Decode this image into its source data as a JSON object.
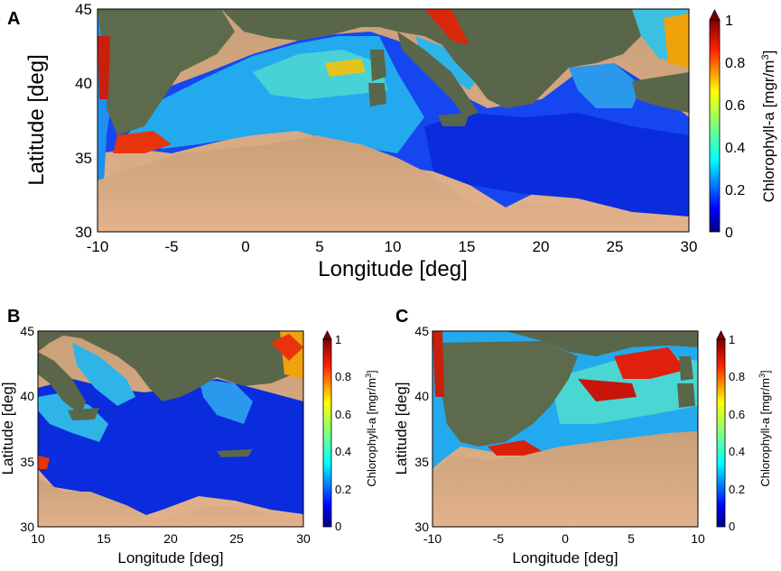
{
  "chart_data": [
    {
      "panel": "A",
      "type": "heatmap",
      "xlabel": "Longitude [deg]",
      "ylabel": "Latitude [deg]",
      "xlim": [
        -10,
        30
      ],
      "ylim": [
        30,
        45
      ],
      "x_ticks": [
        "-10",
        "-5",
        "0",
        "5",
        "10",
        "15",
        "20",
        "25",
        "30"
      ],
      "y_ticks": [
        "30",
        "35",
        "40",
        "45"
      ],
      "colorbar": {
        "label_main": "Chlorophyll-a [mgr/m",
        "label_sup": "3",
        "label_end": "]",
        "range": [
          0,
          1
        ],
        "ticks": [
          "0",
          "0.2",
          "0.4",
          "0.6",
          "0.8",
          "1"
        ]
      },
      "colormap": [
        "#00007f",
        "#0000ff",
        "#007fff",
        "#00ffff",
        "#7fff7f",
        "#ffff00",
        "#ff7f00",
        "#ff0000",
        "#7f0000"
      ]
    },
    {
      "panel": "B",
      "type": "heatmap",
      "xlabel": "Longitude [deg]",
      "ylabel": "Latitude [deg]",
      "xlim": [
        10,
        30
      ],
      "ylim": [
        30,
        45
      ],
      "x_ticks": [
        "10",
        "15",
        "20",
        "25",
        "30"
      ],
      "y_ticks": [
        "30",
        "35",
        "40",
        "45"
      ],
      "colorbar": {
        "label_main": "Chlorophyll-a [mgr/m",
        "label_sup": "3",
        "label_end": "]",
        "range": [
          0,
          1
        ],
        "ticks": [
          "0",
          "0.2",
          "0.4",
          "0.6",
          "0.8",
          "1"
        ]
      }
    },
    {
      "panel": "C",
      "type": "heatmap",
      "xlabel": "Longitude [deg]",
      "ylabel": "Latitude [deg]",
      "xlim": [
        -10,
        10
      ],
      "ylim": [
        30,
        45
      ],
      "x_ticks": [
        "-10",
        "-5",
        "0",
        "5",
        "10"
      ],
      "y_ticks": [
        "30",
        "35",
        "40",
        "45"
      ],
      "colorbar": {
        "label_main": "Chlorophyll-a [mgr/m",
        "label_sup": "3",
        "label_end": "]",
        "range": [
          0,
          1
        ],
        "ticks": [
          "0",
          "0.2",
          "0.4",
          "0.6",
          "0.8",
          "1"
        ]
      }
    }
  ]
}
